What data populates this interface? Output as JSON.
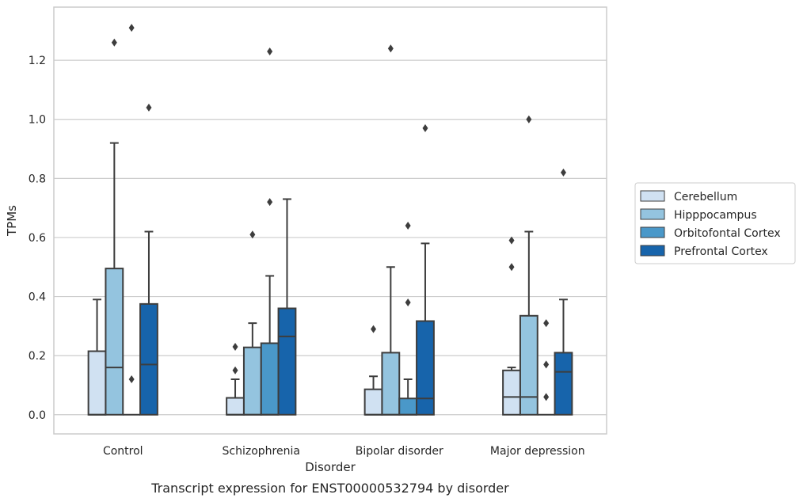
{
  "chart_data": {
    "type": "box",
    "title": "",
    "caption": "Transcript expression for ENST00000532794 by disorder",
    "xlabel": "Disorder",
    "ylabel": "TPMs",
    "ylim": [
      -0.065,
      1.38
    ],
    "yticks": [
      "0.0",
      "0.2",
      "0.4",
      "0.6",
      "0.8",
      "1.0",
      "1.2"
    ],
    "grid": "horizontal",
    "legend_position": "right",
    "categories": [
      "Control",
      "Schizophrenia",
      "Bipolar disorder",
      "Major depression"
    ],
    "series": [
      {
        "name": "Cerebellum",
        "color": "#d0e1f2",
        "boxes": [
          {
            "q1": 0,
            "median": 0,
            "q3": 0.215,
            "whisker_low": 0,
            "whisker_high": 0.39,
            "outliers": []
          },
          {
            "q1": 0,
            "median": 0,
            "q3": 0.057,
            "whisker_low": 0,
            "whisker_high": 0.12,
            "outliers": [
              0.15,
              0.23
            ]
          },
          {
            "q1": 0,
            "median": 0,
            "q3": 0.086,
            "whisker_low": 0,
            "whisker_high": 0.13,
            "outliers": [
              0.29
            ]
          },
          {
            "q1": 0,
            "median": 0.06,
            "q3": 0.15,
            "whisker_low": 0,
            "whisker_high": 0.16,
            "outliers": [
              0.5,
              0.59
            ]
          }
        ]
      },
      {
        "name": "Hipppocampus",
        "color": "#94c4df",
        "boxes": [
          {
            "q1": 0,
            "median": 0.16,
            "q3": 0.495,
            "whisker_low": 0,
            "whisker_high": 0.92,
            "outliers": [
              1.26
            ]
          },
          {
            "q1": 0,
            "median": 0,
            "q3": 0.228,
            "whisker_low": 0,
            "whisker_high": 0.31,
            "outliers": [
              0.61
            ]
          },
          {
            "q1": 0,
            "median": 0,
            "q3": 0.21,
            "whisker_low": 0,
            "whisker_high": 0.5,
            "outliers": [
              1.24
            ]
          },
          {
            "q1": 0,
            "median": 0.06,
            "q3": 0.335,
            "whisker_low": 0,
            "whisker_high": 0.62,
            "outliers": [
              1.0
            ]
          }
        ]
      },
      {
        "name": "Orbitofontal Cortex",
        "color": "#4a98c9",
        "boxes": [
          {
            "q1": 0,
            "median": 0,
            "q3": 0,
            "whisker_low": 0,
            "whisker_high": 0,
            "outliers": [
              0.12,
              1.31
            ]
          },
          {
            "q1": 0,
            "median": 0,
            "q3": 0.242,
            "whisker_low": 0,
            "whisker_high": 0.47,
            "outliers": [
              0.72,
              1.23
            ]
          },
          {
            "q1": 0,
            "median": 0,
            "q3": 0.055,
            "whisker_low": 0,
            "whisker_high": 0.12,
            "outliers": [
              0.38,
              0.64
            ]
          },
          {
            "q1": 0,
            "median": 0,
            "q3": 0,
            "whisker_low": 0,
            "whisker_high": 0,
            "outliers": [
              0.06,
              0.17,
              0.31
            ]
          }
        ]
      },
      {
        "name": "Prefrontal Cortex",
        "color": "#1764ab",
        "boxes": [
          {
            "q1": 0,
            "median": 0.17,
            "q3": 0.375,
            "whisker_low": 0,
            "whisker_high": 0.62,
            "outliers": [
              1.04
            ]
          },
          {
            "q1": 0,
            "median": 0.265,
            "q3": 0.36,
            "whisker_low": 0,
            "whisker_high": 0.73,
            "outliers": []
          },
          {
            "q1": 0,
            "median": 0.055,
            "q3": 0.317,
            "whisker_low": 0,
            "whisker_high": 0.58,
            "outliers": [
              0.97
            ]
          },
          {
            "q1": 0,
            "median": 0.145,
            "q3": 0.21,
            "whisker_low": 0,
            "whisker_high": 0.39,
            "outliers": [
              0.82
            ]
          }
        ]
      }
    ]
  }
}
